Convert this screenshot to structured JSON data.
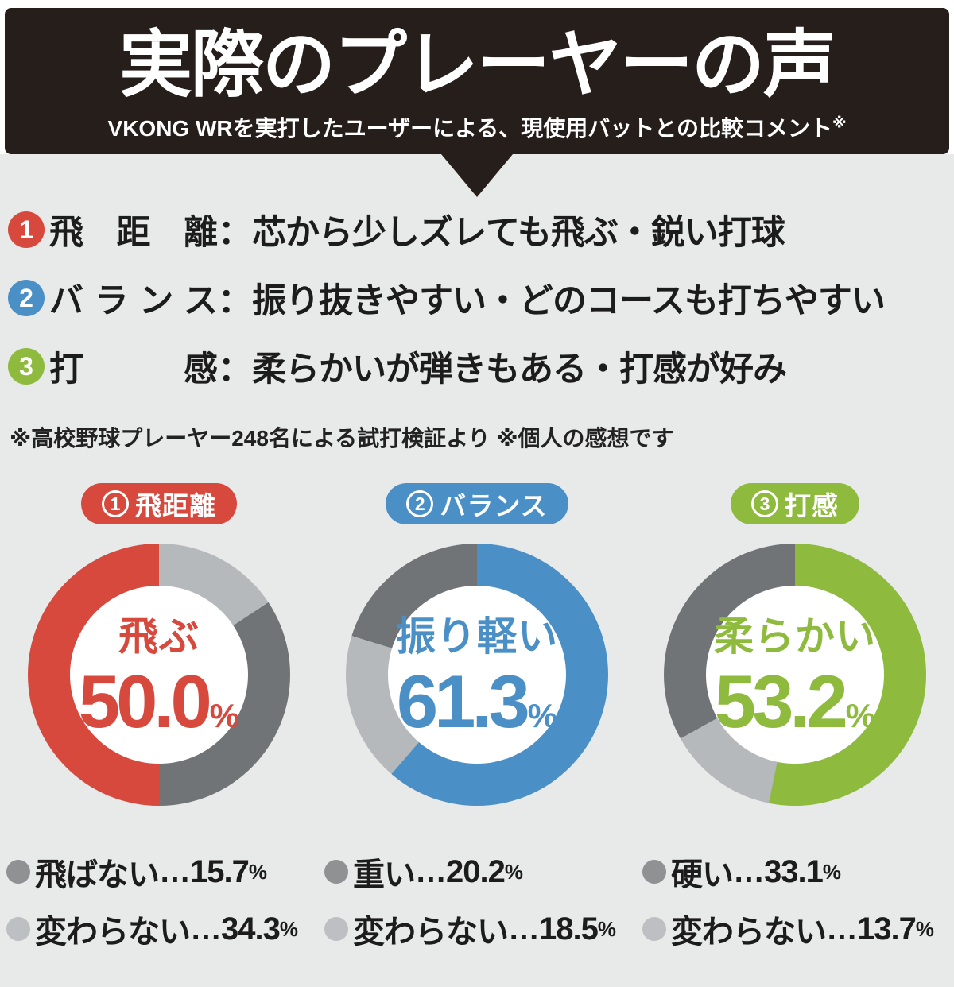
{
  "colors": {
    "header_bg": "#251e1b",
    "page_bg": "#e8e9e9",
    "red": "#d6493c",
    "blue": "#4a8fc6",
    "green": "#8eba3e",
    "ring_gray_dark": "#717477",
    "ring_gray_light": "#b6b9bb",
    "dot_gray_dark": "#8f9193",
    "dot_gray_light": "#bdc0c2"
  },
  "header": {
    "title": "実際のプレーヤーの声",
    "subtitle": "VKONG WRを実打したユーザーによる、現使用バットとの比較コメント",
    "subtitle_note_mark": "※"
  },
  "points": [
    {
      "num": "1",
      "color": "#d6493c",
      "label": "飛距離",
      "separator": "：",
      "desc": "芯から少しズレても飛ぶ・鋭い打球"
    },
    {
      "num": "2",
      "color": "#4a8fc6",
      "label": "バランス",
      "separator": "：",
      "desc": "振り抜きやすい・どのコースも打ちやすい"
    },
    {
      "num": "3",
      "color": "#8eba3e",
      "label": "打感",
      "separator": "：",
      "desc": "柔らかいが弾きもある・打感が好み"
    }
  ],
  "footnote": "※高校野球プレーヤー248名による試打検証より ※個人の感想です",
  "legend_ellipsis": "…",
  "percent_sign": "%",
  "chart_data": [
    {
      "type": "donut",
      "pill": {
        "num": "1",
        "label": "飛距離"
      },
      "accent": "#d6493c",
      "center": {
        "label": "飛ぶ",
        "value": "50.0",
        "unit": "%"
      },
      "segments": [
        {
          "label": "飛ぶ",
          "value": 50.0
        },
        {
          "label": "飛ばない",
          "value": 15.7
        },
        {
          "label": "変わらない",
          "value": 34.3
        }
      ],
      "ring_draw": [
        {
          "color": "#b6b9bb",
          "pct": 15.7
        },
        {
          "color": "#717477",
          "pct": 34.3
        },
        {
          "color": "#d6493c",
          "pct": 50.0
        }
      ],
      "legend": [
        {
          "label": "飛ばない",
          "value": "15.7",
          "dot": "#8f9193"
        },
        {
          "label": "変わらない",
          "value": "34.3",
          "dot": "#bdc0c2"
        }
      ]
    },
    {
      "type": "donut",
      "pill": {
        "num": "2",
        "label": "バランス"
      },
      "accent": "#4a8fc6",
      "center": {
        "label": "振り軽い",
        "value": "61.3",
        "unit": "%"
      },
      "segments": [
        {
          "label": "振り軽い",
          "value": 61.3
        },
        {
          "label": "重い",
          "value": 20.2
        },
        {
          "label": "変わらない",
          "value": 18.5
        }
      ],
      "ring_draw": [
        {
          "color": "#4a8fc6",
          "pct": 61.3
        },
        {
          "color": "#b6b9bb",
          "pct": 18.5
        },
        {
          "color": "#717477",
          "pct": 20.2
        }
      ],
      "legend": [
        {
          "label": "重い",
          "value": "20.2",
          "dot": "#8f9193"
        },
        {
          "label": "変わらない",
          "value": "18.5",
          "dot": "#bdc0c2"
        }
      ]
    },
    {
      "type": "donut",
      "pill": {
        "num": "3",
        "label": "打感"
      },
      "accent": "#8eba3e",
      "center": {
        "label": "柔らかい",
        "value": "53.2",
        "unit": "%"
      },
      "segments": [
        {
          "label": "柔らかい",
          "value": 53.2
        },
        {
          "label": "硬い",
          "value": 33.1
        },
        {
          "label": "変わらない",
          "value": 13.7
        }
      ],
      "ring_draw": [
        {
          "color": "#8eba3e",
          "pct": 53.2
        },
        {
          "color": "#b6b9bb",
          "pct": 13.7
        },
        {
          "color": "#717477",
          "pct": 33.1
        }
      ],
      "legend": [
        {
          "label": "硬い",
          "value": "33.1",
          "dot": "#8f9193"
        },
        {
          "label": "変わらない",
          "value": "13.7",
          "dot": "#bdc0c2"
        }
      ]
    }
  ]
}
